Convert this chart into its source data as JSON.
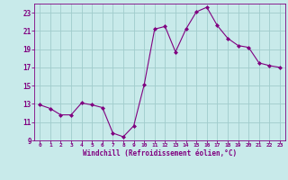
{
  "x": [
    0,
    1,
    2,
    3,
    4,
    5,
    6,
    7,
    8,
    9,
    10,
    11,
    12,
    13,
    14,
    15,
    16,
    17,
    18,
    19,
    20,
    21,
    22,
    23
  ],
  "y": [
    12.9,
    12.5,
    11.8,
    11.8,
    13.1,
    12.9,
    12.6,
    9.8,
    9.4,
    10.6,
    15.1,
    21.2,
    21.5,
    18.7,
    21.2,
    23.1,
    23.6,
    21.6,
    20.2,
    19.4,
    19.2,
    17.5,
    17.2,
    17.0
  ],
  "line_color": "#800080",
  "marker": "D",
  "marker_size": 2,
  "bg_color": "#c8eaea",
  "grid_color": "#a0cccc",
  "xlabel": "Windchill (Refroidissement éolien,°C)",
  "xlabel_color": "#800080",
  "tick_color": "#800080",
  "xlim": [
    -0.5,
    23.5
  ],
  "ylim": [
    9,
    24
  ],
  "yticks": [
    9,
    11,
    13,
    15,
    17,
    19,
    21,
    23
  ],
  "xticks": [
    0,
    1,
    2,
    3,
    4,
    5,
    6,
    7,
    8,
    9,
    10,
    11,
    12,
    13,
    14,
    15,
    16,
    17,
    18,
    19,
    20,
    21,
    22,
    23
  ],
  "figsize": [
    3.2,
    2.0
  ],
  "dpi": 100
}
